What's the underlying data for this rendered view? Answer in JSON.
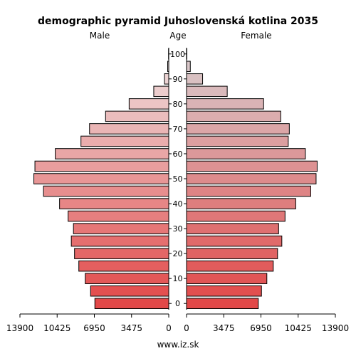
{
  "chart_data": {
    "type": "bar",
    "title": "demographic pyramid Juhoslovenská kotlina 2035",
    "left_label": "Male",
    "center_label": "Age",
    "right_label": "Female",
    "footer": "www.iz.sk",
    "xlim": [
      0,
      13900
    ],
    "x_ticks": [
      0,
      3475,
      6950,
      10425,
      13900
    ],
    "x_tick_labels": [
      "0",
      "3475",
      "6950",
      "10425",
      "13900"
    ],
    "age_ticks": [
      0,
      10,
      20,
      30,
      40,
      50,
      60,
      70,
      80,
      90,
      100
    ],
    "age_tick_labels": [
      "0",
      "10",
      "20",
      "30",
      "40",
      "50",
      "60",
      "70",
      "80",
      "90",
      "100"
    ],
    "age_group_start": [
      0,
      5,
      10,
      15,
      20,
      25,
      30,
      35,
      40,
      45,
      50,
      55,
      60,
      65,
      70,
      75,
      80,
      85,
      90,
      95,
      100
    ],
    "series": [
      {
        "name": "Male",
        "values": [
          6900,
          7300,
          7800,
          8400,
          8800,
          9100,
          8900,
          9400,
          10200,
          11700,
          12600,
          12500,
          10600,
          8200,
          7400,
          5900,
          3700,
          1400,
          400,
          100,
          20
        ]
      },
      {
        "name": "Female",
        "values": [
          6700,
          7000,
          7500,
          8100,
          8500,
          8900,
          8600,
          9200,
          10200,
          11600,
          12100,
          12200,
          11100,
          9500,
          9600,
          8800,
          7200,
          3800,
          1500,
          350,
          30
        ]
      }
    ]
  }
}
